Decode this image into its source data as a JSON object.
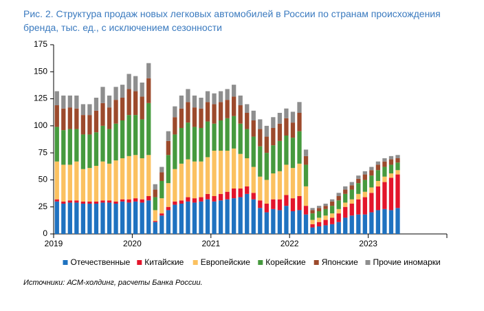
{
  "chart_data": {
    "type": "stacked_bar",
    "title": [
      "Рис. 2. Структура продаж новых легковых автомобилей в России по странам происхождения",
      "бренда, тыс. ед., с исключением сезонности"
    ],
    "source": "Источники: АСМ-холдинг, расчеты Банка России.",
    "categories": [
      "2019",
      null,
      null,
      null,
      null,
      null,
      null,
      null,
      null,
      null,
      null,
      null,
      "2020",
      null,
      null,
      null,
      null,
      null,
      null,
      null,
      null,
      null,
      null,
      null,
      "2021",
      null,
      null,
      null,
      null,
      null,
      null,
      null,
      null,
      null,
      null,
      null,
      "2022",
      null,
      null,
      null,
      null,
      null,
      null,
      null,
      null,
      null,
      null,
      null,
      "2023",
      null,
      null,
      null,
      null,
      null,
      null,
      null,
      null,
      null,
      null,
      null
    ],
    "ylim": [
      0,
      175
    ],
    "yticks": [
      0,
      25,
      50,
      75,
      100,
      125,
      150,
      175
    ],
    "series": [
      {
        "name": "Отечественные",
        "color": "#1f72c0",
        "values": [
          30,
          28,
          29,
          29,
          28,
          28,
          28,
          29,
          29,
          28,
          30,
          29,
          30,
          29,
          31,
          11,
          17,
          22,
          27,
          28,
          30,
          29,
          30,
          32,
          30,
          31,
          32,
          33,
          34,
          37,
          32,
          24,
          20,
          23,
          22,
          26,
          21,
          22,
          18,
          6,
          7,
          8,
          9,
          11,
          15,
          17,
          18,
          18,
          20,
          22,
          23,
          22,
          24,
          null,
          null,
          null,
          null,
          null,
          null,
          null
        ]
      },
      {
        "name": "Китайские",
        "color": "#e3152b",
        "values": [
          2,
          2,
          2,
          2,
          2,
          2,
          2,
          2,
          2,
          2,
          2,
          3,
          3,
          3,
          4,
          1,
          2,
          3,
          3,
          3,
          4,
          4,
          4,
          5,
          5,
          6,
          7,
          9,
          8,
          7,
          6,
          7,
          8,
          9,
          10,
          10,
          12,
          13,
          8,
          3,
          4,
          5,
          6,
          8,
          10,
          11,
          14,
          16,
          18,
          22,
          25,
          30,
          31,
          null,
          null,
          null,
          null,
          null,
          null,
          null
        ]
      },
      {
        "name": "Европейские",
        "color": "#fbc160",
        "values": [
          35,
          34,
          33,
          36,
          30,
          31,
          33,
          36,
          34,
          38,
          38,
          40,
          40,
          38,
          38,
          10,
          14,
          22,
          30,
          34,
          35,
          34,
          33,
          34,
          42,
          40,
          38,
          37,
          32,
          26,
          24,
          22,
          22,
          24,
          26,
          28,
          28,
          30,
          18,
          4,
          4,
          4,
          4,
          4,
          4,
          4,
          5,
          5,
          5,
          5,
          5,
          4,
          4,
          null,
          null,
          null,
          null,
          null,
          null,
          null
        ]
      },
      {
        "name": "Корейские",
        "color": "#469a3e",
        "values": [
          32,
          32,
          33,
          30,
          32,
          31,
          31,
          33,
          32,
          34,
          35,
          38,
          37,
          36,
          48,
          12,
          16,
          26,
          32,
          33,
          34,
          32,
          31,
          33,
          25,
          28,
          30,
          30,
          28,
          27,
          28,
          28,
          25,
          26,
          28,
          27,
          28,
          30,
          20,
          6,
          6,
          6,
          7,
          8,
          8,
          9,
          10,
          11,
          11,
          10,
          9,
          8,
          7,
          null,
          null,
          null,
          null,
          null,
          null,
          null
        ]
      },
      {
        "name": "Японские",
        "color": "#9c4a2c",
        "values": [
          20,
          20,
          20,
          19,
          18,
          18,
          20,
          21,
          20,
          22,
          21,
          24,
          22,
          21,
          23,
          7,
          8,
          13,
          16,
          18,
          19,
          18,
          18,
          18,
          18,
          17,
          17,
          18,
          17,
          15,
          15,
          16,
          15,
          16,
          16,
          16,
          14,
          17,
          8,
          3,
          3,
          3,
          4,
          4,
          4,
          4,
          4,
          5,
          5,
          5,
          5,
          5,
          4,
          null,
          null,
          null,
          null,
          null,
          null,
          null
        ]
      },
      {
        "name": "Прочие иномарки",
        "color": "#8e8e8e",
        "values": [
          13,
          12,
          11,
          12,
          10,
          10,
          12,
          15,
          11,
          12,
          12,
          14,
          14,
          13,
          14,
          5,
          5,
          9,
          10,
          12,
          12,
          11,
          10,
          10,
          10,
          10,
          10,
          11,
          9,
          8,
          9,
          9,
          10,
          10,
          10,
          9,
          10,
          10,
          6,
          2,
          2,
          2,
          2,
          3,
          3,
          3,
          3,
          3,
          3,
          3,
          3,
          3,
          3,
          null,
          null,
          null,
          null,
          null,
          null,
          null
        ]
      }
    ]
  }
}
